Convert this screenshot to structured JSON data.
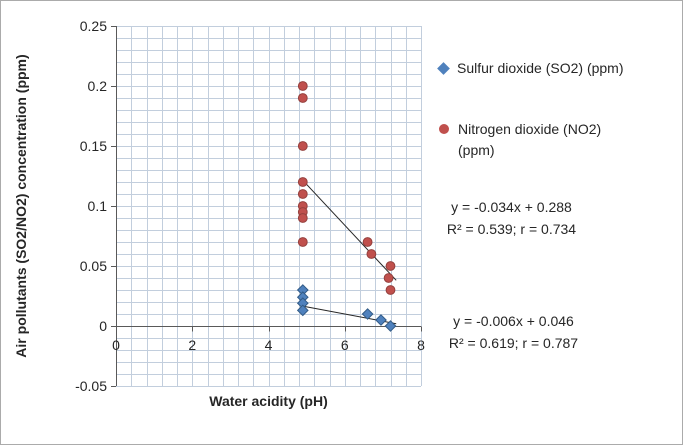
{
  "chart_data": {
    "type": "scatter",
    "title": "",
    "xlabel": "Water acidity (pH)",
    "ylabel": "Air pollutants (SO2/NO2) concentration (ppm)",
    "xlim": [
      0,
      8
    ],
    "ylim": [
      -0.05,
      0.25
    ],
    "grid": true,
    "legend_position": "right",
    "x_tick_values": [
      0,
      2,
      4,
      6,
      8
    ],
    "x_tick_labels": [
      "0",
      "2",
      "4",
      "6",
      "8"
    ],
    "y_tick_values": [
      -0.05,
      0,
      0.05,
      0.1,
      0.15,
      0.2,
      0.25
    ],
    "y_tick_labels": [
      "-0.05",
      "0",
      "0.05",
      "0.1",
      "0.15",
      "0.2",
      "0.25"
    ],
    "x_minor_step": 0.4,
    "y_minor_step": 0.01,
    "series": [
      {
        "name": "Sulfur dioxide (SO2) (ppm)",
        "marker": "diamond",
        "color": "#4F81BD",
        "points": [
          [
            4.9,
            0.03
          ],
          [
            4.9,
            0.024
          ],
          [
            4.9,
            0.019
          ],
          [
            4.9,
            0.013
          ],
          [
            6.6,
            0.01
          ],
          [
            6.95,
            0.005
          ],
          [
            7.2,
            0.0
          ]
        ],
        "trendline": {
          "slope": -0.006,
          "intercept": 0.046,
          "x_start": 4.9,
          "x_end": 7.35,
          "equation": "y = -0.006x + 0.046",
          "r_squared": "R² = 0.619; r = 0.787"
        }
      },
      {
        "name": "Nitrogen dioxide (NO2) (ppm)",
        "marker": "circle",
        "color": "#C0504D",
        "points": [
          [
            4.9,
            0.2
          ],
          [
            4.9,
            0.19
          ],
          [
            4.9,
            0.15
          ],
          [
            4.9,
            0.12
          ],
          [
            4.9,
            0.11
          ],
          [
            4.9,
            0.1
          ],
          [
            4.9,
            0.095
          ],
          [
            4.9,
            0.09
          ],
          [
            4.9,
            0.07
          ],
          [
            6.6,
            0.07
          ],
          [
            6.7,
            0.06
          ],
          [
            7.2,
            0.05
          ],
          [
            7.15,
            0.04
          ],
          [
            7.2,
            0.03
          ]
        ],
        "trendline": {
          "slope": -0.034,
          "intercept": 0.288,
          "x_start": 4.9,
          "x_end": 7.35,
          "equation": "y = -0.034x + 0.288",
          "r_squared": "R² = 0.539; r = 0.734"
        }
      }
    ]
  }
}
